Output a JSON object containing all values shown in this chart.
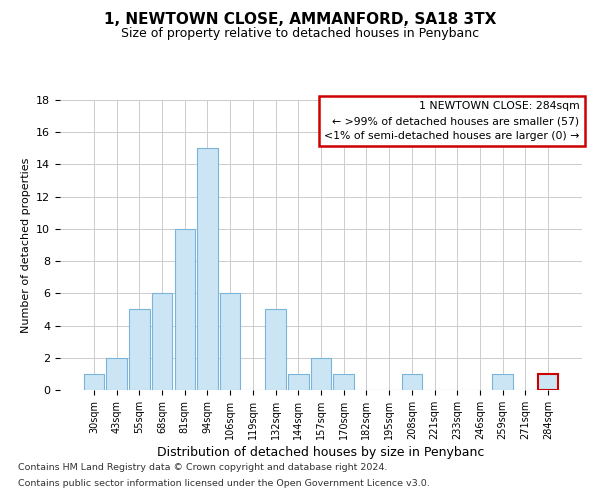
{
  "title": "1, NEWTOWN CLOSE, AMMANFORD, SA18 3TX",
  "subtitle": "Size of property relative to detached houses in Penybanc",
  "xlabel": "Distribution of detached houses by size in Penybanc",
  "ylabel": "Number of detached properties",
  "footnote1": "Contains HM Land Registry data © Crown copyright and database right 2024.",
  "footnote2": "Contains public sector information licensed under the Open Government Licence v3.0.",
  "bar_labels": [
    "30sqm",
    "43sqm",
    "55sqm",
    "68sqm",
    "81sqm",
    "94sqm",
    "106sqm",
    "119sqm",
    "132sqm",
    "144sqm",
    "157sqm",
    "170sqm",
    "182sqm",
    "195sqm",
    "208sqm",
    "221sqm",
    "233sqm",
    "246sqm",
    "259sqm",
    "271sqm",
    "284sqm"
  ],
  "bar_values": [
    1,
    2,
    5,
    6,
    10,
    15,
    6,
    0,
    5,
    1,
    2,
    1,
    0,
    0,
    1,
    0,
    0,
    0,
    1,
    0,
    1
  ],
  "bar_color": "#cce5f5",
  "bar_edgecolor": "#7ab4d8",
  "highlight_bar_index": 20,
  "highlight_bar_edgecolor": "#cc0000",
  "ylim": [
    0,
    18
  ],
  "yticks": [
    0,
    2,
    4,
    6,
    8,
    10,
    12,
    14,
    16,
    18
  ],
  "legend_title": "1 NEWTOWN CLOSE: 284sqm",
  "legend_line1": "← >99% of detached houses are smaller (57)",
  "legend_line2": "<1% of semi-detached houses are larger (0) →",
  "background_color": "#ffffff",
  "grid_color": "#cccccc"
}
